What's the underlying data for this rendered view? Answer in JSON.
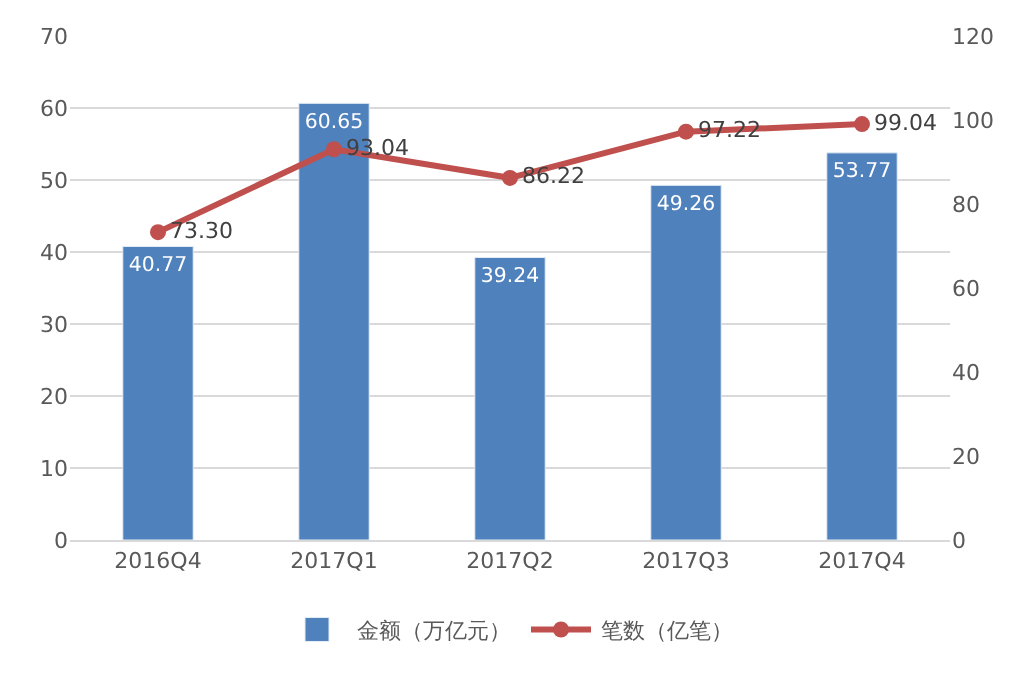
{
  "chart_data": {
    "type": "bar",
    "categories": [
      "2016Q4",
      "2017Q1",
      "2017Q2",
      "2017Q3",
      "2017Q4"
    ],
    "series": [
      {
        "name": "金额（万亿元）",
        "color": "#4f81bd",
        "values": [
          40.77,
          60.65,
          39.24,
          49.26,
          53.77
        ]
      },
      {
        "name": "笔数（亿笔）",
        "type": "line",
        "axis": "y2",
        "color": "#c0504d",
        "marker": "circle",
        "values": [
          73.3,
          93.04,
          86.22,
          97.22,
          99.04
        ],
        "value_labels": [
          "73.30",
          "93.04",
          "86.22",
          "97.22",
          "99.04"
        ]
      }
    ],
    "ylim": [
      0,
      70
    ],
    "yticks": [
      0,
      10,
      20,
      30,
      40,
      50,
      60,
      70
    ],
    "y2lim": [
      0,
      120
    ],
    "y2ticks": [
      0,
      20,
      40,
      60,
      80,
      100,
      120
    ],
    "grid": "y",
    "legend": "bottom",
    "data_labels": true
  }
}
